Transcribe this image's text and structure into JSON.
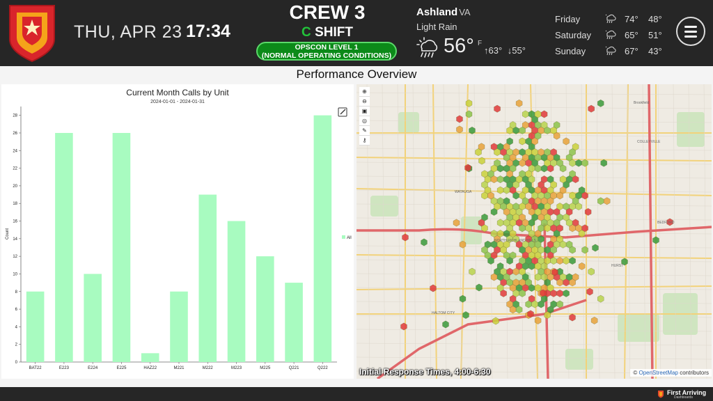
{
  "header": {
    "date": "THU, APR 23",
    "time": "17:34",
    "crew": "CREW 3",
    "shift_letter": "C",
    "shift_word": "SHIFT",
    "opscon_line1": "OPSCON LEVEL 1",
    "opscon_line2": "(NORMAL OPERATING CONDITIONS)",
    "menu_icon": "hamburger-menu-icon"
  },
  "weather": {
    "city": "Ashland",
    "state": "VA",
    "condition": "Light Rain",
    "temp": "56°",
    "unit": "F",
    "high": "63°",
    "low": "55°",
    "icon": "rain-cloud-sun-icon",
    "forecast": [
      {
        "day": "Friday",
        "high": "74°",
        "low": "48°"
      },
      {
        "day": "Saturday",
        "high": "65°",
        "low": "51°"
      },
      {
        "day": "Sunday",
        "high": "67°",
        "low": "43°"
      }
    ]
  },
  "page_title": "Performance Overview",
  "chart_data": {
    "type": "bar",
    "title": "Current Month Calls by Unit",
    "subtitle": "2024-01-01 - 2024-01-31",
    "xlabel": "",
    "ylabel": "Count",
    "ylim": [
      0,
      29
    ],
    "yticks": [
      0,
      2,
      4,
      6,
      8,
      10,
      12,
      14,
      16,
      18,
      20,
      22,
      24,
      26,
      28
    ],
    "categories": [
      "BAT22",
      "E223",
      "E224",
      "E225",
      "HAZ22",
      "M221",
      "M222",
      "M223",
      "M225",
      "Q221",
      "Q222"
    ],
    "series": [
      {
        "name": "All",
        "values": [
          8,
          26,
          10,
          26,
          1,
          8,
          19,
          16,
          12,
          9,
          28
        ],
        "color": "#a8fbc0"
      }
    ],
    "legend": "right",
    "grid": false
  },
  "map": {
    "caption": "Initial Response Times, 4:00-6:30",
    "attribution_prefix": "©",
    "attribution_link": "OpenStreetMap",
    "attribution_suffix": "contributors",
    "labels": [
      {
        "text": "COLLEYVILLE"
      },
      {
        "text": "WATAUGA"
      },
      {
        "text": "HURST"
      },
      {
        "text": "BEDFORD"
      },
      {
        "text": "HALTOM CITY"
      },
      {
        "text": "NORTH RICHLAND HILLS"
      },
      {
        "text": "Brookfield"
      }
    ],
    "tools": [
      "zoom-in-icon",
      "zoom-out-icon",
      "layers-icon",
      "locate-icon",
      "edit-icon",
      "key-icon"
    ],
    "legend_colors": {
      "good": "#3a9a3a",
      "fair": "#c9d13a",
      "slow": "#e8a23a",
      "late": "#e03a3a"
    }
  },
  "footer": {
    "brand_name": "First Arriving",
    "brand_sub": "Dashboards"
  }
}
